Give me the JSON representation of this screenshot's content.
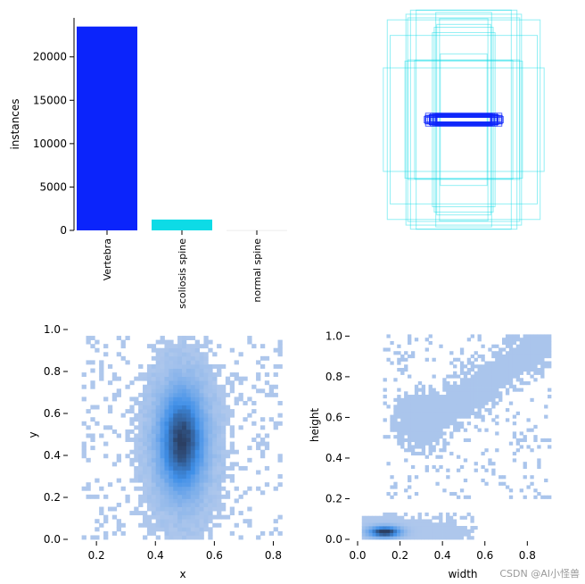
{
  "watermark": "CSDN @AI小怪兽",
  "colors": {
    "vertebra": "#0b24fb",
    "scoliosis": "#0ddbe6",
    "normal": "#f2f2f2",
    "hist_low": "#aec7ec",
    "hist_mid": "#3f8fe8",
    "hist_high": "#2b3f63"
  },
  "chart_data": [
    {
      "type": "bar",
      "categories": [
        "Vertebra",
        "scoliosis spine",
        "normal spine"
      ],
      "values": [
        23500,
        1250,
        60
      ],
      "ylabel": "instances",
      "ylim": [
        0,
        24500
      ],
      "yticks": [
        0,
        5000,
        10000,
        15000,
        20000
      ],
      "grid": false
    },
    {
      "type": "boxes",
      "description": "label bounding boxes drawn around image center",
      "groups": [
        {
          "name": "Vertebra",
          "w_range": [
            0.2,
            0.32
          ],
          "h_range": [
            0.02,
            0.07
          ],
          "count": 20
        },
        {
          "name": "scoliosis spine",
          "w_range": [
            0.25,
            0.92
          ],
          "h_range": [
            0.45,
            0.98
          ],
          "count": 16
        }
      ]
    },
    {
      "type": "heatmap",
      "xlabel": "x",
      "ylabel": "y",
      "xlim": [
        0.13,
        0.85
      ],
      "ylim": [
        0,
        1.0
      ],
      "xticks": [
        0.2,
        0.4,
        0.6,
        0.8
      ],
      "yticks": [
        0.0,
        0.2,
        0.4,
        0.6,
        0.8,
        1.0
      ],
      "distribution": {
        "x_center": 0.49,
        "x_sd": 0.055,
        "y_center": 0.47,
        "y_sd": 0.17,
        "x_min": 0.15,
        "x_max": 0.83,
        "y_min": 0.0,
        "y_max": 0.97
      }
    },
    {
      "type": "heatmap",
      "xlabel": "width",
      "ylabel": "height",
      "xlim": [
        0,
        0.95
      ],
      "ylim": [
        0,
        1.05
      ],
      "xticks": [
        0.0,
        0.2,
        0.4,
        0.6,
        0.8
      ],
      "yticks": [
        0.0,
        0.2,
        0.4,
        0.6,
        0.8,
        1.0
      ],
      "clusters": [
        {
          "name": "Vertebra",
          "w_center": 0.12,
          "w_range": [
            0.02,
            0.55
          ],
          "h_center": 0.03,
          "h_range": [
            0.0,
            0.12
          ]
        },
        {
          "name": "scoliosis spine",
          "w_center": 0.3,
          "w_range": [
            0.12,
            0.9
          ],
          "h_center": 0.58,
          "h_range": [
            0.2,
            1.0
          ]
        }
      ]
    }
  ]
}
